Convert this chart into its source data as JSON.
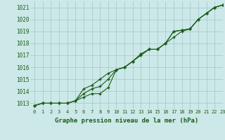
{
  "title": "Graphe pression niveau de la mer (hPa)",
  "bg_color": "#cce8e8",
  "grid_color": "#aacccc",
  "line_color": "#1a5c1a",
  "xlim": [
    -0.5,
    23
  ],
  "ylim": [
    1012.5,
    1021.5
  ],
  "yticks": [
    1013,
    1014,
    1015,
    1016,
    1017,
    1018,
    1019,
    1020,
    1021
  ],
  "xticks": [
    0,
    1,
    2,
    3,
    4,
    5,
    6,
    7,
    8,
    9,
    10,
    11,
    12,
    13,
    14,
    15,
    16,
    17,
    18,
    19,
    20,
    21,
    22,
    23
  ],
  "series1": [
    1012.8,
    1013.0,
    1013.0,
    1013.0,
    1013.0,
    1013.2,
    1013.5,
    1013.8,
    1013.8,
    1014.3,
    1015.8,
    1016.0,
    1016.5,
    1017.0,
    1017.5,
    1017.5,
    1018.0,
    1018.5,
    1019.0,
    1019.2,
    1020.0,
    1020.5,
    1021.0,
    1021.2
  ],
  "series2": [
    1012.8,
    1013.0,
    1013.0,
    1013.0,
    1013.0,
    1013.2,
    1013.8,
    1014.2,
    1014.4,
    1015.0,
    1015.8,
    1016.0,
    1016.5,
    1017.1,
    1017.5,
    1017.5,
    1018.0,
    1019.0,
    1019.1,
    1019.2,
    1020.0,
    1020.5,
    1021.0,
    1021.2
  ],
  "series3": [
    1012.8,
    1013.0,
    1013.0,
    1013.0,
    1013.0,
    1013.2,
    1014.2,
    1014.5,
    1015.0,
    1015.5,
    1015.8,
    1016.0,
    1016.5,
    1017.1,
    1017.5,
    1017.5,
    1018.0,
    1019.0,
    1019.1,
    1019.2,
    1020.0,
    1020.5,
    1021.0,
    1021.2
  ]
}
